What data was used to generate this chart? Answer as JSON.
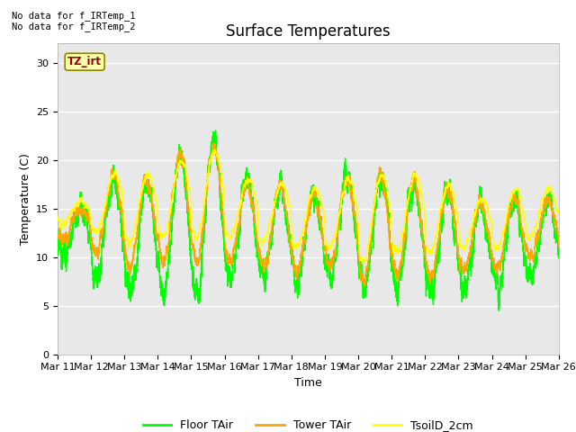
{
  "title": "Surface Temperatures",
  "xlabel": "Time",
  "ylabel": "Temperature (C)",
  "ylim": [
    0,
    32
  ],
  "yticks": [
    0,
    5,
    10,
    15,
    20,
    25,
    30
  ],
  "xtick_labels": [
    "Mar 11",
    "Mar 12",
    "Mar 13",
    "Mar 14",
    "Mar 15",
    "Mar 16",
    "Mar 17",
    "Mar 18",
    "Mar 19",
    "Mar 20",
    "Mar 21",
    "Mar 22",
    "Mar 23",
    "Mar 24",
    "Mar 25",
    "Mar 26"
  ],
  "legend_labels": [
    "Floor TAir",
    "Tower TAir",
    "TsoilD_2cm"
  ],
  "line_colors": [
    "#00FF00",
    "#FFA500",
    "#FFFF00"
  ],
  "line_width": 1.0,
  "annotation_text": "No data for f_IRTemp_1\nNo data for f_IRTemp_2",
  "legend_box_text": "TZ_irt",
  "legend_box_bg": "#FFFFAA",
  "legend_box_border": "#888800",
  "legend_box_text_color": "#990000",
  "bg_color": "#E8E8E8",
  "fig_bg": "#FFFFFF",
  "grid_color": "#FFFFFF",
  "title_fontsize": 12,
  "axis_label_fontsize": 9,
  "tick_fontsize": 8
}
